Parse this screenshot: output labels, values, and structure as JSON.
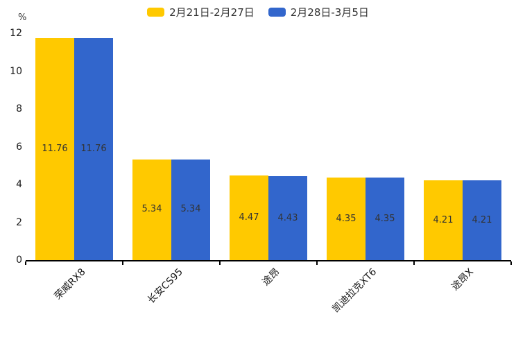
{
  "chart_data": {
    "type": "bar",
    "title": "",
    "unit": "%",
    "categories": [
      "荣威RX8",
      "长安CS95",
      "途昂",
      "凯迪拉克XT6",
      "途昂X"
    ],
    "series": [
      {
        "name": "2月21日-2月27日",
        "color": "#FFC900",
        "values": [
          11.76,
          5.34,
          4.47,
          4.35,
          4.21
        ]
      },
      {
        "name": "2月28日-3月5日",
        "color": "#3266CC",
        "values": [
          11.76,
          5.34,
          4.43,
          4.35,
          4.21
        ]
      }
    ],
    "ylim": [
      0,
      12
    ],
    "yticks": [
      0,
      2,
      4,
      6,
      8,
      10,
      12
    ],
    "grid": false,
    "legend_position": "top",
    "value_labels": "inside-center",
    "x_label_rotation_deg": -45
  },
  "colors": {
    "background": "#ffffff",
    "axis": "#000000",
    "text": "#333333"
  }
}
